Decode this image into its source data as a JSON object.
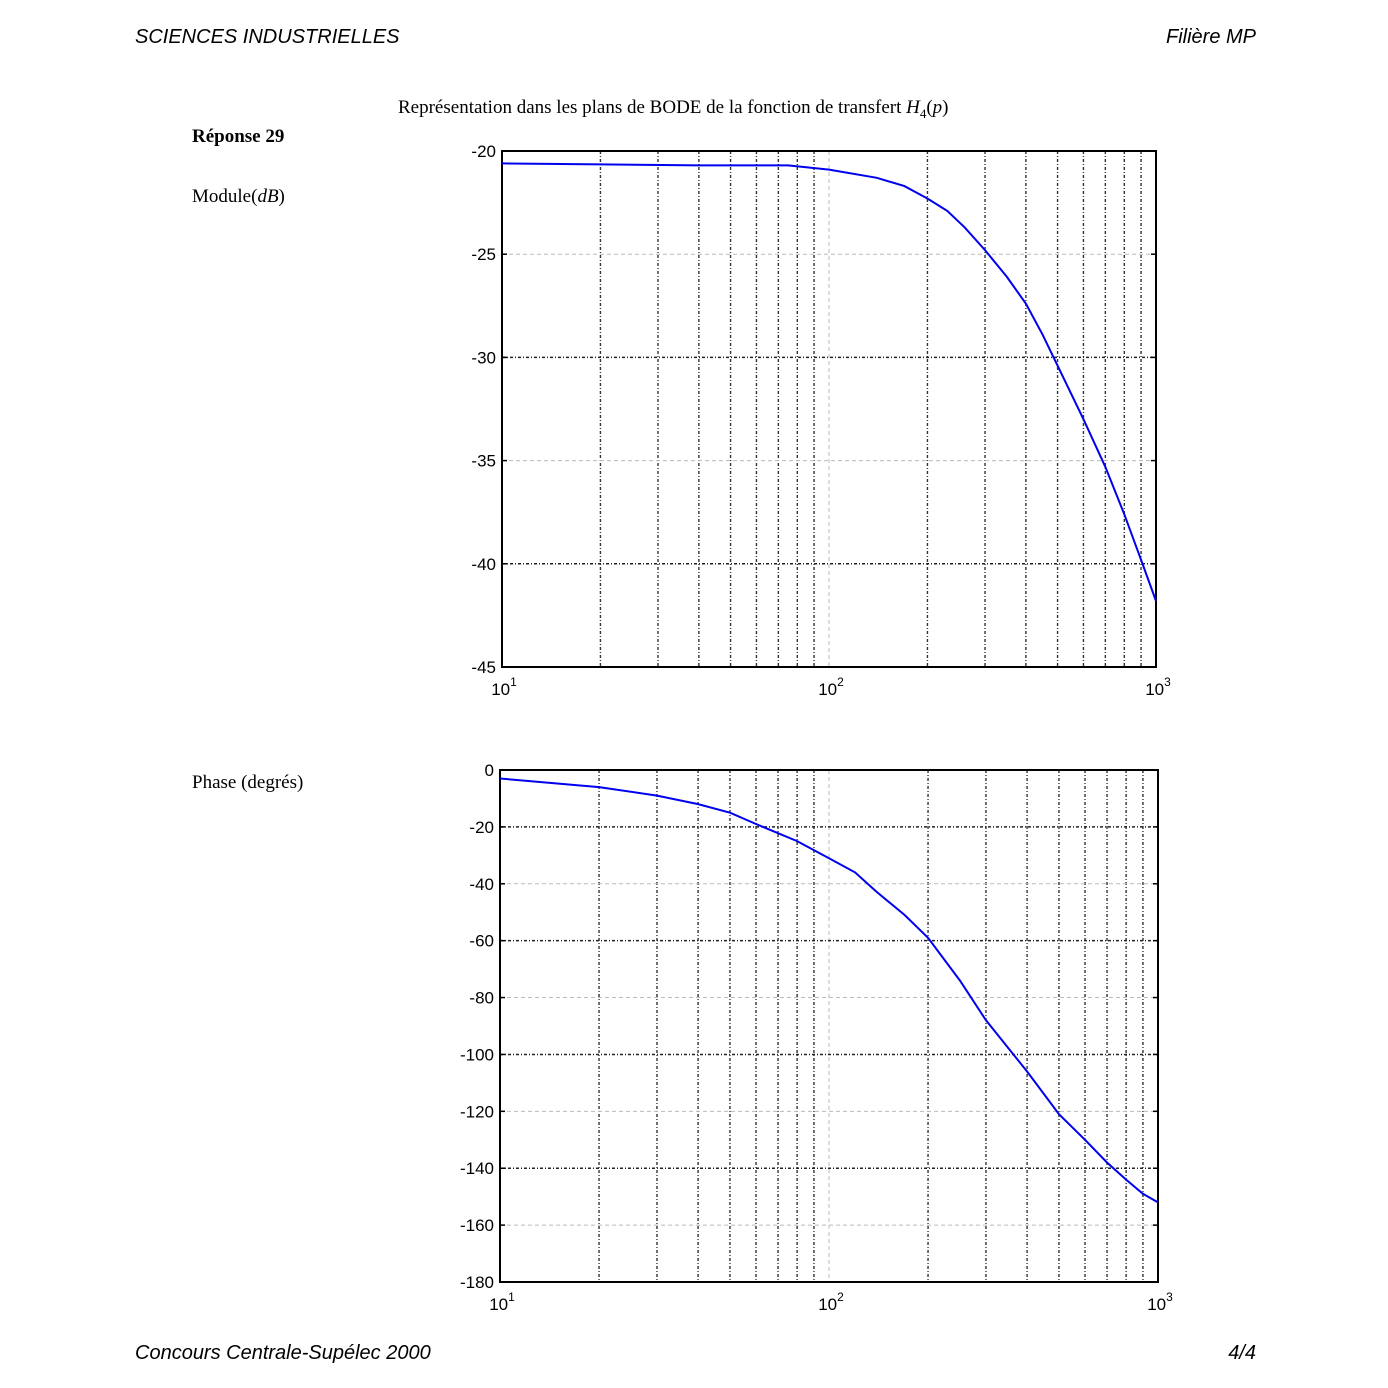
{
  "header": {
    "left": "SCIENCES INDUSTRIELLES",
    "right": "Filière MP"
  },
  "footer": {
    "left": "Concours Centrale-Supélec 2000",
    "right": "4/4"
  },
  "figure": {
    "title_prefix": "Représentation dans les plans de BODE de la fonction de transfert",
    "title_fn": "H",
    "title_sub": "4",
    "title_arg": "p",
    "answer_label": "Réponse 29",
    "module_label": "Module",
    "module_unit": "dB",
    "phase_label": "Phase (degrés)"
  },
  "chart_data": [
    {
      "type": "line",
      "name": "module",
      "x_scale": "log",
      "xlim": [
        10,
        1000
      ],
      "ylim": [
        -45,
        -20
      ],
      "x_ticks": [
        10,
        100,
        1000
      ],
      "x_tick_labels": [
        [
          "10",
          "1"
        ],
        [
          "10",
          "2"
        ],
        [
          "10",
          "3"
        ]
      ],
      "y_ticks": [
        -20,
        -25,
        -30,
        -35,
        -40,
        -45
      ],
      "grid": true,
      "line_color": "#0000ee",
      "x": [
        10,
        20,
        40,
        60,
        75,
        100,
        140,
        170,
        200,
        230,
        260,
        300,
        350,
        400,
        450,
        500,
        600,
        700,
        800,
        900,
        1000
      ],
      "y": [
        -20.6,
        -20.65,
        -20.7,
        -20.7,
        -20.7,
        -20.9,
        -21.3,
        -21.7,
        -22.3,
        -22.9,
        -23.7,
        -24.8,
        -26.1,
        -27.4,
        -28.9,
        -30.4,
        -33.0,
        -35.3,
        -37.6,
        -39.8,
        -41.8
      ]
    },
    {
      "type": "line",
      "name": "phase",
      "x_scale": "log",
      "xlim": [
        10,
        1000
      ],
      "ylim": [
        -180,
        0
      ],
      "x_ticks": [
        10,
        100,
        1000
      ],
      "x_tick_labels": [
        [
          "10",
          "1"
        ],
        [
          "10",
          "2"
        ],
        [
          "10",
          "3"
        ]
      ],
      "y_ticks": [
        0,
        -20,
        -40,
        -60,
        -80,
        -100,
        -120,
        -140,
        -160,
        -180
      ],
      "grid": true,
      "line_color": "#0000ee",
      "x": [
        10,
        20,
        30,
        40,
        50,
        60,
        80,
        100,
        120,
        140,
        170,
        200,
        250,
        300,
        400,
        500,
        600,
        700,
        800,
        900,
        1000
      ],
      "y": [
        -3,
        -6,
        -9,
        -12,
        -15,
        -19,
        -25,
        -31,
        -36,
        -43,
        -51,
        -59,
        -74,
        -88,
        -106,
        -121,
        -130,
        -138,
        -144,
        -149,
        -152
      ]
    }
  ]
}
